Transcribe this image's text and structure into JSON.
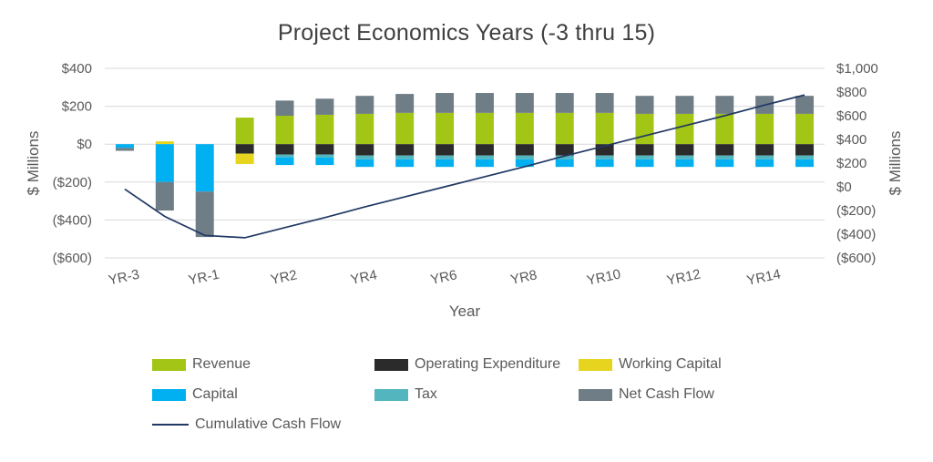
{
  "title": "Project Economics Years (-3 thru 15)",
  "chart_data": {
    "type": "combo: stacked bar + line (dual axis)",
    "categories": [
      "YR-3",
      "YR-2",
      "YR-1",
      "YR1",
      "YR2",
      "YR3",
      "YR4",
      "YR5",
      "YR6",
      "YR7",
      "YR8",
      "YR9",
      "YR10",
      "YR11",
      "YR12",
      "YR13",
      "YR14",
      "YR15"
    ],
    "x_axis_label": "Year",
    "x_tick_step": 2,
    "x_ticks": [
      "YR-3",
      "YR-1",
      "YR2",
      "YR4",
      "YR6",
      "YR8",
      "YR10",
      "YR12",
      "YR14"
    ],
    "left_axis": {
      "label": "$ Millions",
      "min": -600,
      "max": 400,
      "step": 200,
      "ticks": [
        "$400",
        "$200",
        "$0",
        "($200)",
        "($400)",
        "($600)"
      ]
    },
    "right_axis": {
      "label": "$ Millions",
      "min": -600,
      "max": 1000,
      "step": 200,
      "ticks": [
        "$1,000",
        "$800",
        "$600",
        "$400",
        "$200",
        "$0",
        "($200)",
        "($400)",
        "($600)"
      ]
    },
    "grid_color": "#d9d9d9",
    "series": [
      {
        "key": "revenue",
        "name": "Revenue",
        "color": "#a2c516",
        "values": [
          0,
          0,
          0,
          140,
          150,
          155,
          160,
          165,
          165,
          165,
          165,
          165,
          165,
          160,
          160,
          160,
          160,
          160
        ]
      },
      {
        "key": "operating-expenditure",
        "name": "Operating Expenditure",
        "color": "#2b2b2b",
        "values": [
          0,
          0,
          0,
          -50,
          -55,
          -55,
          -60,
          -60,
          -60,
          -60,
          -60,
          -60,
          -60,
          -60,
          -60,
          -60,
          -60,
          -60
        ]
      },
      {
        "key": "working-capital",
        "name": "Working Capital",
        "color": "#e6d41f",
        "values": [
          0,
          15,
          0,
          -55,
          0,
          0,
          0,
          0,
          0,
          0,
          0,
          0,
          0,
          0,
          0,
          0,
          0,
          0
        ]
      },
      {
        "key": "tax",
        "name": "Tax",
        "color": "#53b5bd",
        "values": [
          0,
          0,
          0,
          0,
          -15,
          -15,
          -20,
          -20,
          -20,
          -20,
          -20,
          -20,
          -20,
          -20,
          -20,
          -20,
          -20,
          -20
        ]
      },
      {
        "key": "capital",
        "name": "Capital",
        "color": "#00b0f0",
        "values": [
          -20,
          -200,
          -250,
          0,
          -40,
          -40,
          -40,
          -40,
          -40,
          -40,
          -40,
          -40,
          -40,
          -40,
          -40,
          -40,
          -40,
          -40
        ]
      },
      {
        "key": "net-cash-flow",
        "name": "Net Cash Flow",
        "color": "#6f7d87",
        "values": [
          -15,
          -150,
          -240,
          0,
          80,
          85,
          95,
          100,
          105,
          105,
          105,
          105,
          105,
          95,
          95,
          95,
          95,
          95
        ]
      }
    ],
    "line_series": {
      "key": "cumulative-cash-flow",
      "name": "Cumulative Cash Flow",
      "color": "#203864",
      "axis": "right",
      "values": [
        -20,
        -250,
        -410,
        -430,
        -345,
        -260,
        -170,
        -85,
        0,
        85,
        170,
        260,
        345,
        430,
        515,
        600,
        690,
        775
      ]
    }
  },
  "legend": [
    {
      "label": "Revenue",
      "color": "#a2c516",
      "type": "bar"
    },
    {
      "label": "Operating Expenditure",
      "color": "#2b2b2b",
      "type": "bar"
    },
    {
      "label": "Working Capital",
      "color": "#e6d41f",
      "type": "bar"
    },
    {
      "label": "Capital",
      "color": "#00b0f0",
      "type": "bar"
    },
    {
      "label": "Tax",
      "color": "#53b5bd",
      "type": "bar"
    },
    {
      "label": "Net Cash Flow",
      "color": "#6f7d87",
      "type": "bar"
    },
    {
      "label": "Cumulative Cash Flow",
      "color": "#203864",
      "type": "line"
    }
  ]
}
